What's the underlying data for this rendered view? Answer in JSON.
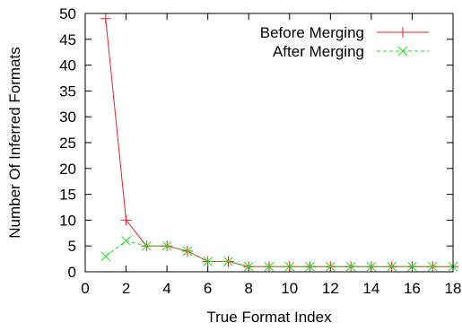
{
  "chart_data": {
    "type": "line",
    "title": "",
    "xlabel": "True Format Index",
    "ylabel": "Number Of Inferred Formats",
    "xlim": [
      0,
      18
    ],
    "ylim": [
      0,
      50
    ],
    "xticks": [
      0,
      2,
      4,
      6,
      8,
      10,
      12,
      14,
      16,
      18
    ],
    "yticks": [
      0,
      5,
      10,
      15,
      20,
      25,
      30,
      35,
      40,
      45,
      50
    ],
    "grid": false,
    "legend_position": "top-right",
    "series": [
      {
        "name": "Before Merging",
        "color": "#e8222a",
        "line_style": "solid",
        "marker": "plus",
        "x": [
          1,
          2,
          3,
          4,
          5,
          6,
          7,
          8,
          9,
          10,
          11,
          12,
          13,
          14,
          15,
          16,
          17,
          18
        ],
        "y": [
          49,
          10,
          5,
          5,
          4,
          2,
          2,
          1,
          1,
          1,
          1,
          1,
          1,
          1,
          1,
          1,
          1,
          1
        ]
      },
      {
        "name": "After Merging",
        "color": "#22dd22",
        "line_style": "dashed",
        "marker": "cross",
        "x": [
          1,
          2,
          3,
          4,
          5,
          6,
          7,
          8,
          9,
          10,
          11,
          12,
          13,
          14,
          15,
          16,
          17,
          18
        ],
        "y": [
          3,
          6,
          5,
          5,
          4,
          2,
          2,
          1,
          1,
          1,
          1,
          1,
          1,
          1,
          1,
          1,
          1,
          1
        ]
      }
    ]
  }
}
